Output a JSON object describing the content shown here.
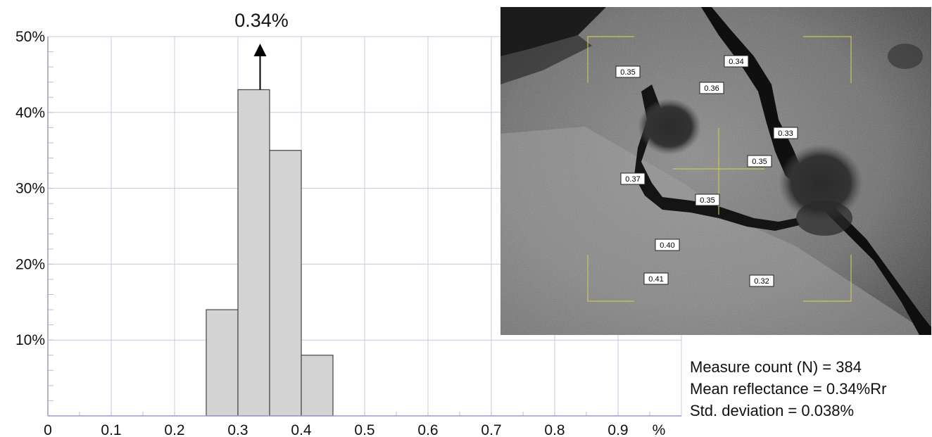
{
  "chart_data": {
    "type": "bar",
    "title": "",
    "xlabel": "",
    "ylabel": "",
    "x_unit_label": "%",
    "x_ticks": [
      "0",
      "0.1",
      "0.2",
      "0.3",
      "0.4",
      "0.5",
      "0.6",
      "0.7",
      "0.8",
      "0.9"
    ],
    "y_ticks": [
      "10%",
      "20%",
      "30%",
      "40%",
      "50%"
    ],
    "xlim": [
      0,
      1.0
    ],
    "ylim": [
      0,
      50
    ],
    "grid": true,
    "bar_color": "#d3d3d3",
    "bins": [
      {
        "from": 0.25,
        "to": 0.3,
        "value": 14
      },
      {
        "from": 0.3,
        "to": 0.35,
        "value": 43
      },
      {
        "from": 0.35,
        "to": 0.4,
        "value": 35
      },
      {
        "from": 0.4,
        "to": 0.45,
        "value": 8
      }
    ],
    "peak_annotation": {
      "x": 0.335,
      "text": "0.34%"
    }
  },
  "micrograph": {
    "labels": [
      "0.35",
      "0.34",
      "0.36",
      "0.33",
      "0.35",
      "0.37",
      "0.35",
      "0.40",
      "0.41",
      "0.32"
    ]
  },
  "stats": {
    "count_label": "Measure count (N) = ",
    "count_value": "384",
    "mean_label": "Mean reflectance = ",
    "mean_value": "0.34%Rr",
    "std_label": "Std. deviation = ",
    "std_value": "0.038%"
  }
}
